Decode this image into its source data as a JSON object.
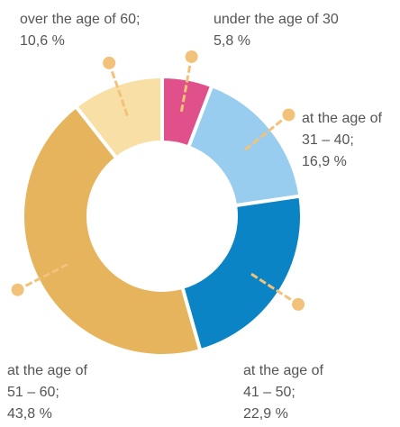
{
  "chart_data": {
    "type": "pie",
    "categories": [
      "under the age of 30",
      "at the age of 31 – 40;",
      "at the age of 41 – 50;",
      "at the age of 51 – 60;",
      "over the age of 60;"
    ],
    "values": [
      5.8,
      16.9,
      22.9,
      43.8,
      10.6
    ],
    "value_labels": [
      "5,8 %",
      "16,9 %",
      "22,9 %",
      "43,8 %",
      "10,6 %"
    ],
    "colors": [
      "#e0508a",
      "#99cdef",
      "#0a84c4",
      "#e6b45c",
      "#f7dfa6"
    ]
  }
}
